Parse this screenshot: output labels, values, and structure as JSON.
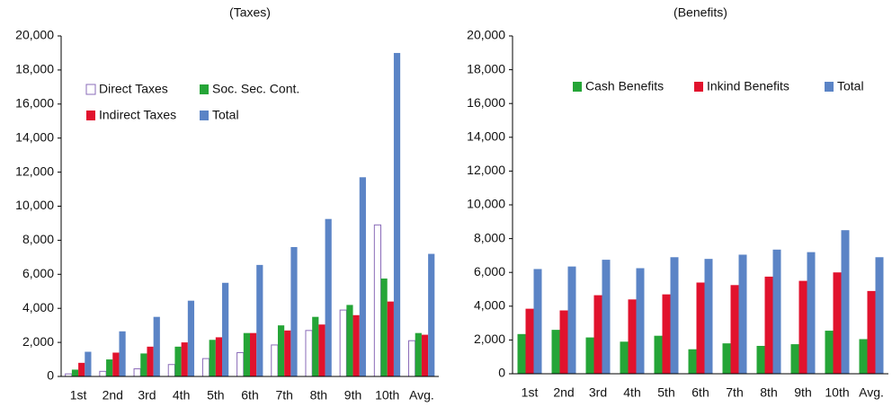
{
  "chart_data": [
    {
      "type": "bar",
      "title": "(Taxes)",
      "categories": [
        "1st",
        "2nd",
        "3rd",
        "4th",
        "5th",
        "6th",
        "7th",
        "8th",
        "9th",
        "10th",
        "Avg."
      ],
      "series": [
        {
          "name": "Direct Taxes",
          "color": "#ffffff",
          "edgecolor": "#8a6bb8",
          "values": [
            150,
            300,
            450,
            700,
            1050,
            1400,
            1850,
            2700,
            3900,
            8900,
            2100
          ]
        },
        {
          "name": "Soc. Sec. Cont.",
          "color": "#25a537",
          "values": [
            400,
            1000,
            1350,
            1750,
            2150,
            2550,
            3000,
            3500,
            4200,
            5750,
            2550
          ]
        },
        {
          "name": "Indirect Taxes",
          "color": "#e1122d",
          "values": [
            800,
            1400,
            1750,
            2000,
            2300,
            2550,
            2700,
            3050,
            3600,
            4400,
            2450
          ]
        },
        {
          "name": "Total",
          "color": "#5b84c6",
          "values": [
            1450,
            2650,
            3500,
            4450,
            5500,
            6550,
            7600,
            9250,
            11700,
            19000,
            7200
          ]
        }
      ],
      "ylim": [
        0,
        20000
      ],
      "yticks": [
        0,
        {
          "value": 2000,
          "label": "2,000"
        },
        {
          "value": 4000,
          "label": "4,000"
        },
        {
          "value": 6000,
          "label": "6,000"
        },
        {
          "value": 8000,
          "label": "8,000"
        },
        {
          "value": 10000,
          "label": "10,000"
        },
        {
          "value": 12000,
          "label": "12,000"
        },
        {
          "value": 14000,
          "label": "14,000"
        },
        {
          "value": 16000,
          "label": "16,000"
        },
        {
          "value": 18000,
          "label": "18,000"
        },
        {
          "value": 20000,
          "label": "20,000"
        }
      ],
      "legend": "upper left",
      "grid": false
    },
    {
      "type": "bar",
      "title": "(Benefits)",
      "categories": [
        "1st",
        "2nd",
        "3rd",
        "4th",
        "5th",
        "6th",
        "7th",
        "8th",
        "9th",
        "10th",
        "Avg."
      ],
      "series": [
        {
          "name": "Cash Benefits",
          "color": "#25a537",
          "values": [
            2350,
            2600,
            2150,
            1900,
            2250,
            1450,
            1800,
            1650,
            1750,
            2550,
            2050
          ]
        },
        {
          "name": "Inkind Benefits",
          "color": "#e1122d",
          "values": [
            3850,
            3750,
            4650,
            4400,
            4700,
            5400,
            5250,
            5750,
            5500,
            6000,
            4900
          ]
        },
        {
          "name": "Total",
          "color": "#5b84c6",
          "values": [
            6200,
            6350,
            6750,
            6250,
            6900,
            6800,
            7050,
            7350,
            7200,
            8500,
            6900
          ]
        }
      ],
      "ylim": [
        0,
        20000
      ],
      "yticks": [
        0,
        {
          "value": 2000,
          "label": "2,000"
        },
        {
          "value": 4000,
          "label": "4,000"
        },
        {
          "value": 6000,
          "label": "6,000"
        },
        {
          "value": 8000,
          "label": "8,000"
        },
        {
          "value": 10000,
          "label": "10,000"
        },
        {
          "value": 12000,
          "label": "12,000"
        },
        {
          "value": 14000,
          "label": "14,000"
        },
        {
          "value": 16000,
          "label": "16,000"
        },
        {
          "value": 18000,
          "label": "18,000"
        },
        {
          "value": 20000,
          "label": "20,000"
        }
      ],
      "legend": "upper right",
      "grid": false
    }
  ]
}
